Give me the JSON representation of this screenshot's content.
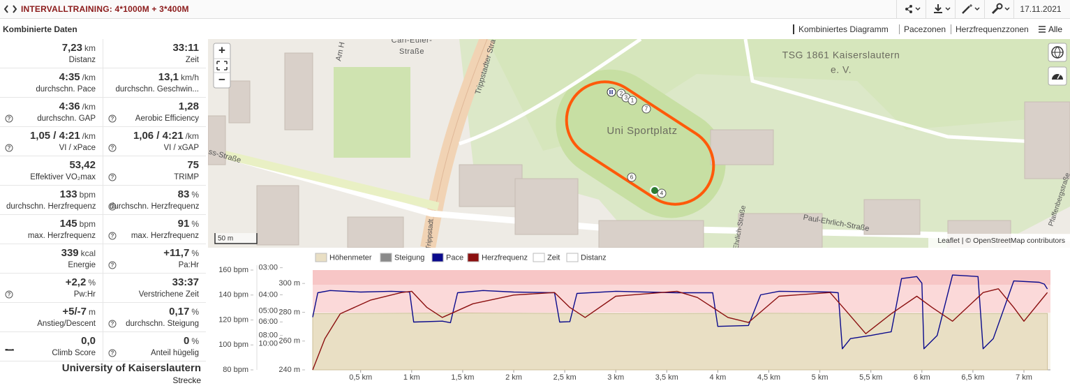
{
  "header": {
    "title": "INTERVALLTRAINING: 4*1000M + 3*400M",
    "date": "17.11.2021"
  },
  "panel": {
    "title": "Kombinierte Daten",
    "tabs": [
      "Kombiniertes Diagramm",
      "Pacezonen",
      "Herzfrequenzzonen",
      "Alle"
    ]
  },
  "stats": [
    {
      "value": "7,23",
      "unit": "km",
      "label": "Distanz"
    },
    {
      "value": "33:11",
      "label": "Zeit"
    },
    {
      "value": "4:35",
      "unit": "/km",
      "label": "durchschn. Pace"
    },
    {
      "value": "13,1",
      "unit": "km/h",
      "label": "durchschn. Geschwin..."
    },
    {
      "value": "4:36",
      "unit": "/km",
      "label": "durchschn. GAP",
      "icon": "help"
    },
    {
      "value": "1,28",
      "label": "Aerobic Efficiency",
      "icon": "help"
    },
    {
      "value": "1,05 / 4:21",
      "unit": "/km",
      "label": "VI / xPace",
      "icon": "help"
    },
    {
      "value": "1,06 / 4:21",
      "unit": "/km",
      "label": "VI / xGAP",
      "icon": "help"
    },
    {
      "value": "53,42",
      "label": "Effektiver VO₂max",
      "icon": "trend"
    },
    {
      "value": "75",
      "label": "TRIMP",
      "icon": "help"
    },
    {
      "value": "133",
      "unit": "bpm",
      "label": "durchschn. Herzfrequenz"
    },
    {
      "value": "83",
      "unit": "%",
      "label": "durchschn. Herzfrequenz",
      "icon": "help"
    },
    {
      "value": "145",
      "unit": "bpm",
      "label": "max. Herzfrequenz"
    },
    {
      "value": "91",
      "unit": "%",
      "label": "max. Herzfrequenz",
      "icon": "help"
    },
    {
      "value": "339",
      "unit": "kcal",
      "label": "Energie"
    },
    {
      "value": "+11,7",
      "unit": "%",
      "label": "Pa:Hr",
      "icon": "help"
    },
    {
      "value": "+2,2",
      "unit": "%",
      "label": "Pw:Hr",
      "icon": "help"
    },
    {
      "value": "33:37",
      "label": "Verstrichene Zeit"
    },
    {
      "value": "+5/-7",
      "unit": "m",
      "label": "Anstieg/Descent"
    },
    {
      "value": "0,17",
      "unit": "%",
      "label": "durchschn. Steigung",
      "icon": "help"
    },
    {
      "value": "0,0",
      "label": "Climb Score",
      "icon": "chart"
    },
    {
      "value": "0",
      "unit": "%",
      "label": "Anteil hügelig",
      "icon": "help"
    }
  ],
  "location": {
    "name": "University of Kaiserslautern",
    "label": "Strecke"
  },
  "map": {
    "labels": [
      "Carl-Euler-",
      "Straße",
      "TSG 1861 Kaiserslautern",
      "e. V.",
      "Uni Sportplatz",
      "Trippstadter Stra",
      "Paul-Ehrlich-Straße",
      "Pfaffenbergstraße",
      "Am H",
      "ss-Straße",
      "Ehrlich-Straße",
      "Trippstadt"
    ],
    "markers": [
      "2",
      "3",
      "1",
      "7",
      "6",
      "4"
    ],
    "zoom": [
      "+",
      "−"
    ],
    "scale": "50 m",
    "attribution": "Leaflet | © OpenStreetMap contributors"
  },
  "chart_data": {
    "type": "line",
    "xlim": [
      0.03,
      7.26
    ],
    "xticks": [
      {
        "value": 0.5,
        "label": "0,5 km"
      },
      {
        "value": 1,
        "label": "1 km"
      },
      {
        "value": 1.5,
        "label": "1,5 km"
      },
      {
        "value": 2,
        "label": "2 km"
      },
      {
        "value": 2.5,
        "label": "2,5 km"
      },
      {
        "value": 3,
        "label": "3 km"
      },
      {
        "value": 3.5,
        "label": "3,5 km"
      },
      {
        "value": 4,
        "label": "4 km"
      },
      {
        "value": 4.5,
        "label": "4,5 km"
      },
      {
        "value": 5,
        "label": "5 km"
      },
      {
        "value": 5.5,
        "label": "5,5 km"
      },
      {
        "value": 6,
        "label": "6 km"
      },
      {
        "value": 6.5,
        "label": "6,5 km"
      },
      {
        "value": 7,
        "label": "7 km"
      }
    ],
    "ylim": [
      80,
      160
    ],
    "yticks": [
      {
        "value": 160,
        "label": "160 bpm"
      },
      {
        "value": 140,
        "label": "140 bpm"
      },
      {
        "value": 120,
        "label": "120 bpm"
      },
      {
        "value": 100,
        "label": "100 bpm"
      },
      {
        "value": 80,
        "label": "80 bpm"
      }
    ],
    "y2lim": [
      3100,
      184
    ],
    "y2scale": "reciprocal",
    "y2ticks": [
      {
        "value": 180,
        "label": "03:00"
      },
      {
        "value": 240,
        "label": "04:00"
      },
      {
        "value": 300,
        "label": "05:00"
      },
      {
        "value": 360,
        "label": "06:00"
      },
      {
        "value": 480,
        "label": "08:00"
      },
      {
        "value": 600,
        "label": "10:00"
      }
    ],
    "y3lim": [
      240,
      309.3
    ],
    "y3ticks": [
      {
        "value": 300,
        "label": "300 m"
      },
      {
        "value": 280,
        "label": "280 m"
      },
      {
        "value": 260,
        "label": "260 m"
      },
      {
        "value": 240,
        "label": "240 m"
      }
    ],
    "series": [
      {
        "name": "Höhenmeter",
        "color": "#e9dfc4",
        "axis": "y3",
        "kind": "area",
        "x": [
          0.03,
          1.5,
          3.0,
          4.5,
          6.0,
          7.23
        ],
        "values": [
          279,
          279.5,
          279,
          279.3,
          279,
          279.2
        ]
      },
      {
        "name": "Steigung",
        "color": "#8a8a8a"
      },
      {
        "name": "Pace",
        "color": "#0a0a8c",
        "axis": "y2",
        "x": [
          0.03,
          0.08,
          0.2,
          0.5,
          0.8,
          0.98,
          1.02,
          1.3,
          1.38,
          1.45,
          1.7,
          2.0,
          2.4,
          2.45,
          2.55,
          2.62,
          3.0,
          3.3,
          3.6,
          3.95,
          4.0,
          4.3,
          4.42,
          4.6,
          5.1,
          5.18,
          5.22,
          5.3,
          5.5,
          5.7,
          5.8,
          5.95,
          6.0,
          6.02,
          6.15,
          6.3,
          6.55,
          6.6,
          6.7,
          6.9,
          7.15,
          7.2,
          7.23
        ],
        "values": [
          331,
          234,
          228,
          232,
          230,
          232,
          361,
          355,
          365,
          234,
          228,
          232,
          234,
          361,
          358,
          236,
          230,
          232,
          234,
          234,
          392,
          385,
          240,
          230,
          232,
          234,
          714,
          520,
          480,
          440,
          200,
          196,
          210,
          714,
          480,
          193,
          196,
          714,
          520,
          205,
          208,
          212,
          224
        ]
      },
      {
        "name": "Herzfrequenz",
        "color": "#8b1010",
        "x": [
          0.03,
          0.15,
          0.3,
          0.6,
          0.9,
          1.0,
          1.15,
          1.3,
          1.6,
          2.0,
          2.4,
          2.55,
          2.7,
          3.0,
          3.6,
          3.8,
          4.1,
          4.3,
          4.6,
          5.1,
          5.25,
          5.45,
          5.7,
          5.95,
          6.1,
          6.3,
          6.6,
          6.75,
          6.9,
          7.0,
          7.2,
          7.23
        ],
        "values": [
          80,
          105,
          125,
          136,
          142,
          143,
          130,
          122,
          133,
          140,
          142,
          130,
          122,
          139,
          143,
          138,
          122,
          118,
          139,
          142,
          128,
          109,
          125,
          139,
          130,
          119,
          142,
          145,
          130,
          119,
          139,
          142
        ]
      },
      {
        "name": "Zeit",
        "color": "#ffffff"
      },
      {
        "name": "Distanz",
        "color": "#ffffff"
      }
    ]
  }
}
